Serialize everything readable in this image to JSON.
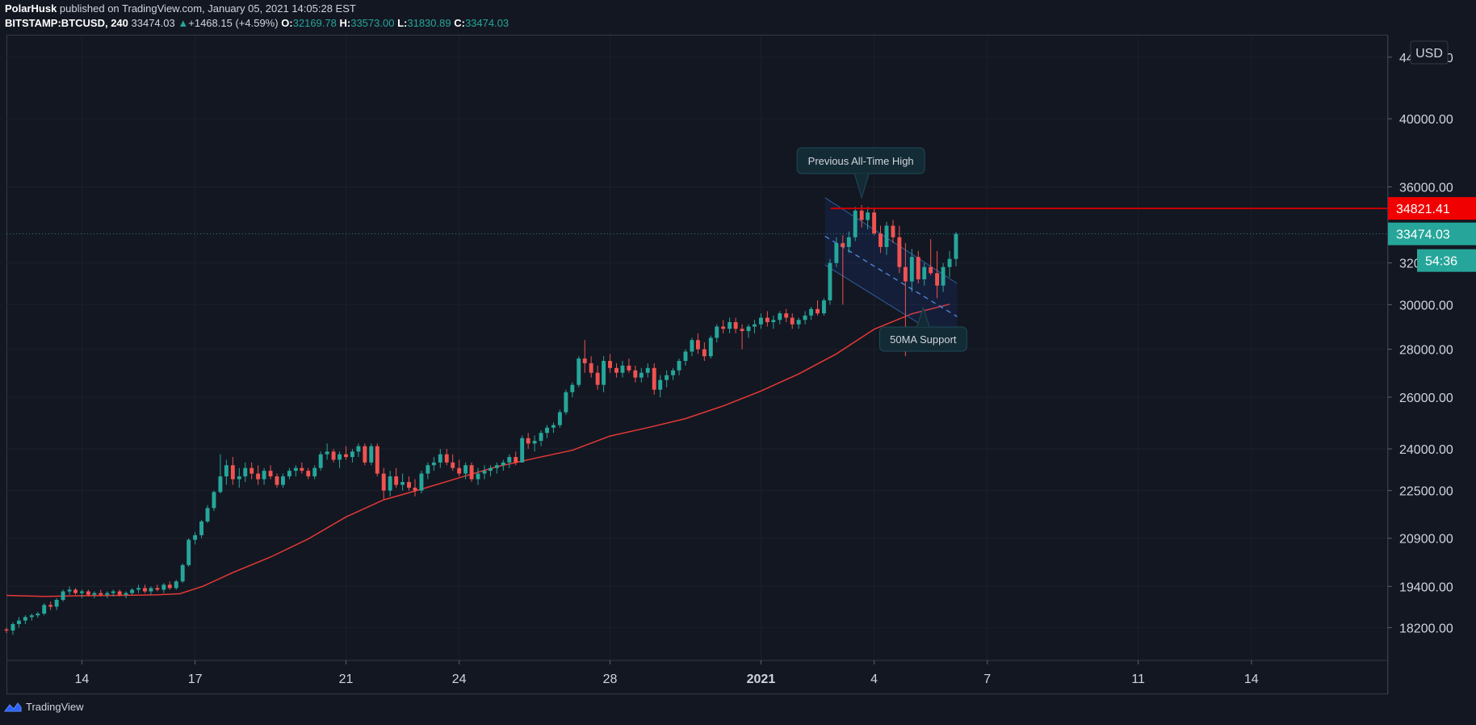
{
  "header": {
    "line1": {
      "user": "PolarHusk",
      "rest": " published on TradingView.com, January 05, 2021 14:05:28 EST"
    },
    "line2": {
      "symbol": "BITSTAMP:BTCUSD, 240",
      "last": "33474.03",
      "change": "+1468.15 (+4.59%)",
      "o_label": "O:",
      "o": "32169.78",
      "h_label": "H:",
      "h": "33573.00",
      "l_label": "L:",
      "l": "31830.89",
      "c_label": "C:",
      "c": "33474.03"
    }
  },
  "currency_label": "USD",
  "colors": {
    "bg": "#131722",
    "up": "#26a69a",
    "down": "#ef5350",
    "ma": "#e53935",
    "ath": "#cc0000",
    "grid": "#1c202b",
    "axis_text": "#d1d4dc"
  },
  "footer": {
    "brand": "TradingView",
    "icon": "tradingview-cloud-icon"
  },
  "badges": {
    "ath": "34821.41",
    "price": "33474.03",
    "countdown": "54:36"
  },
  "annotations": {
    "ath": "Previous All-Time High",
    "ma": "50MA Support"
  },
  "chart_data": {
    "type": "candlestick",
    "scale": "log",
    "y_ticks": [
      18200,
      19400,
      20900,
      22500,
      24000,
      26000,
      28000,
      30000,
      32000,
      36000,
      40000,
      44000
    ],
    "y_tick_labels": [
      "18200.00",
      "19400.00",
      "20900.00",
      "22500.00",
      "24000.00",
      "26000.00",
      "28000.00",
      "30000.00",
      "32000.00",
      "36000.00",
      "40000.00",
      "44000.00"
    ],
    "x_ticks": [
      {
        "day": 14,
        "label": "14"
      },
      {
        "day": 17,
        "label": "17"
      },
      {
        "day": 21,
        "label": "21"
      },
      {
        "day": 24,
        "label": "24"
      },
      {
        "day": 28,
        "label": "28"
      },
      {
        "day": 32,
        "label": "2021",
        "bold": true
      },
      {
        "day": 35,
        "label": "4"
      },
      {
        "day": 38,
        "label": "7"
      },
      {
        "day": 42,
        "label": "11"
      },
      {
        "day": 45,
        "label": "14"
      }
    ],
    "x_range_days": [
      12.0,
      48.6
    ],
    "y_range": [
      17300,
      45500
    ],
    "ath_level": 34821.41,
    "last_price": 33474.03,
    "ma50": [
      [
        12.0,
        19130
      ],
      [
        13.0,
        19100
      ],
      [
        14.0,
        19120
      ],
      [
        15.0,
        19130
      ],
      [
        16.0,
        19150
      ],
      [
        16.6,
        19180
      ],
      [
        17.2,
        19400
      ],
      [
        18.0,
        19820
      ],
      [
        19.0,
        20300
      ],
      [
        20.0,
        20880
      ],
      [
        21.0,
        21600
      ],
      [
        22.0,
        22180
      ],
      [
        23.0,
        22550
      ],
      [
        24.0,
        22950
      ],
      [
        25.0,
        23350
      ],
      [
        26.0,
        23650
      ],
      [
        27.0,
        23950
      ],
      [
        28.0,
        24480
      ],
      [
        29.0,
        24800
      ],
      [
        30.0,
        25150
      ],
      [
        31.0,
        25650
      ],
      [
        32.0,
        26250
      ],
      [
        33.0,
        26950
      ],
      [
        34.0,
        27800
      ],
      [
        35.0,
        28880
      ],
      [
        36.0,
        29580
      ],
      [
        37.0,
        30020
      ]
    ],
    "channel": {
      "start_day": 33.7,
      "end_day": 37.2,
      "upper": [
        35400,
        31000
      ],
      "middle": [
        33350,
        29450
      ],
      "lower": [
        31900,
        28100
      ]
    },
    "candles": [
      [
        12.0,
        18150,
        18200,
        18050,
        18120
      ],
      [
        12.17,
        18120,
        18350,
        18000,
        18300
      ],
      [
        12.33,
        18300,
        18500,
        18200,
        18400
      ],
      [
        12.5,
        18400,
        18550,
        18300,
        18500
      ],
      [
        12.67,
        18500,
        18600,
        18400,
        18550
      ],
      [
        12.83,
        18550,
        18650,
        18480,
        18600
      ],
      [
        13.0,
        18600,
        18900,
        18550,
        18850
      ],
      [
        13.17,
        18850,
        18950,
        18700,
        18800
      ],
      [
        13.33,
        18800,
        19050,
        18700,
        19000
      ],
      [
        13.5,
        19000,
        19300,
        18950,
        19250
      ],
      [
        13.67,
        19250,
        19400,
        19150,
        19300
      ],
      [
        13.83,
        19300,
        19350,
        19150,
        19200
      ],
      [
        14.0,
        19200,
        19300,
        19050,
        19250
      ],
      [
        14.17,
        19250,
        19300,
        19100,
        19150
      ],
      [
        14.33,
        19150,
        19250,
        19050,
        19200
      ],
      [
        14.5,
        19200,
        19300,
        19100,
        19150
      ],
      [
        14.67,
        19150,
        19250,
        19050,
        19200
      ],
      [
        14.83,
        19200,
        19300,
        19100,
        19250
      ],
      [
        15.0,
        19250,
        19300,
        19100,
        19150
      ],
      [
        15.17,
        19150,
        19250,
        19050,
        19200
      ],
      [
        15.33,
        19200,
        19350,
        19150,
        19300
      ],
      [
        15.5,
        19300,
        19450,
        19200,
        19350
      ],
      [
        15.67,
        19350,
        19450,
        19200,
        19250
      ],
      [
        15.83,
        19250,
        19400,
        19150,
        19350
      ],
      [
        16.0,
        19350,
        19450,
        19250,
        19300
      ],
      [
        16.17,
        19300,
        19500,
        19200,
        19450
      ],
      [
        16.33,
        19450,
        19550,
        19300,
        19350
      ],
      [
        16.5,
        19350,
        19600,
        19300,
        19550
      ],
      [
        16.67,
        19550,
        20100,
        19500,
        20050
      ],
      [
        16.83,
        20050,
        20900,
        20000,
        20850
      ],
      [
        17.0,
        20850,
        21100,
        20700,
        21000
      ],
      [
        17.17,
        21000,
        21500,
        20900,
        21450
      ],
      [
        17.33,
        21450,
        22000,
        21400,
        21900
      ],
      [
        17.5,
        21900,
        22500,
        21800,
        22450
      ],
      [
        17.67,
        22450,
        23800,
        22400,
        23000
      ],
      [
        17.83,
        23000,
        23600,
        22700,
        23400
      ],
      [
        18.0,
        23400,
        23700,
        22700,
        22900
      ],
      [
        18.17,
        22900,
        23300,
        22600,
        23000
      ],
      [
        18.33,
        23000,
        23500,
        22800,
        23300
      ],
      [
        18.5,
        23300,
        23500,
        22900,
        23100
      ],
      [
        18.67,
        23100,
        23400,
        22700,
        22900
      ],
      [
        18.83,
        22900,
        23300,
        22700,
        23200
      ],
      [
        19.0,
        23200,
        23400,
        22900,
        23000
      ],
      [
        19.17,
        23000,
        23100,
        22600,
        22700
      ],
      [
        19.33,
        22700,
        23100,
        22600,
        23000
      ],
      [
        19.5,
        23000,
        23300,
        22900,
        23200
      ],
      [
        19.67,
        23200,
        23400,
        23000,
        23300
      ],
      [
        19.83,
        23300,
        23500,
        23100,
        23200
      ],
      [
        20.0,
        23200,
        23300,
        22900,
        23000
      ],
      [
        20.17,
        23000,
        23400,
        22900,
        23300
      ],
      [
        20.33,
        23300,
        23900,
        23200,
        23800
      ],
      [
        20.5,
        23800,
        24200,
        23600,
        23900
      ],
      [
        20.67,
        23900,
        24000,
        23500,
        23600
      ],
      [
        20.83,
        23600,
        23900,
        23300,
        23800
      ],
      [
        21.0,
        23800,
        24100,
        23600,
        23700
      ],
      [
        21.17,
        23700,
        24000,
        23500,
        23900
      ],
      [
        21.33,
        23900,
        24200,
        23700,
        24100
      ],
      [
        21.5,
        24100,
        24200,
        23400,
        23500
      ],
      [
        21.67,
        23500,
        24200,
        23400,
        24100
      ],
      [
        21.83,
        24100,
        24200,
        23000,
        23100
      ],
      [
        22.0,
        23100,
        23300,
        22200,
        22500
      ],
      [
        22.17,
        22500,
        23200,
        22300,
        23000
      ],
      [
        22.33,
        23000,
        23300,
        22600,
        22700
      ],
      [
        22.5,
        22700,
        23100,
        22500,
        22800
      ],
      [
        22.67,
        22800,
        23000,
        22500,
        22600
      ],
      [
        22.83,
        22600,
        22900,
        22300,
        22500
      ],
      [
        23.0,
        22500,
        23200,
        22400,
        23100
      ],
      [
        23.17,
        23100,
        23500,
        22900,
        23400
      ],
      [
        23.33,
        23400,
        23700,
        23200,
        23500
      ],
      [
        23.5,
        23500,
        24000,
        23300,
        23800
      ],
      [
        23.67,
        23800,
        24000,
        23400,
        23500
      ],
      [
        23.83,
        23500,
        23800,
        23200,
        23300
      ],
      [
        24.0,
        23300,
        23600,
        23000,
        23100
      ],
      [
        24.17,
        23100,
        23500,
        22900,
        23400
      ],
      [
        24.33,
        23400,
        23500,
        22800,
        22900
      ],
      [
        24.5,
        22900,
        23300,
        22700,
        23100
      ],
      [
        24.67,
        23100,
        23400,
        22900,
        23200
      ],
      [
        24.83,
        23200,
        23400,
        23000,
        23300
      ],
      [
        25.0,
        23300,
        23500,
        23100,
        23400
      ],
      [
        25.17,
        23400,
        23600,
        23200,
        23500
      ],
      [
        25.33,
        23500,
        23800,
        23300,
        23700
      ],
      [
        25.5,
        23700,
        23900,
        23400,
        23500
      ],
      [
        25.67,
        23500,
        24500,
        23500,
        24400
      ],
      [
        25.83,
        24400,
        24600,
        24000,
        24200
      ],
      [
        26.0,
        24200,
        24500,
        23900,
        24300
      ],
      [
        26.17,
        24300,
        24700,
        24100,
        24600
      ],
      [
        26.33,
        24600,
        24900,
        24400,
        24800
      ],
      [
        26.5,
        24800,
        25000,
        24600,
        24900
      ],
      [
        26.67,
        24900,
        25500,
        24800,
        25400
      ],
      [
        26.83,
        25400,
        26300,
        25300,
        26200
      ],
      [
        27.0,
        26200,
        26600,
        26000,
        26500
      ],
      [
        27.17,
        26500,
        27700,
        26400,
        27600
      ],
      [
        27.33,
        27600,
        28400,
        27000,
        27400
      ],
      [
        27.5,
        27400,
        27700,
        26800,
        27000
      ],
      [
        27.67,
        27000,
        27300,
        26300,
        26500
      ],
      [
        27.83,
        26500,
        27700,
        26200,
        27500
      ],
      [
        28.0,
        27500,
        27800,
        27000,
        27200
      ],
      [
        28.17,
        27200,
        27400,
        26800,
        27000
      ],
      [
        28.33,
        27000,
        27500,
        26800,
        27300
      ],
      [
        28.5,
        27300,
        27600,
        27000,
        27100
      ],
      [
        28.67,
        27100,
        27300,
        26600,
        26800
      ],
      [
        28.83,
        26800,
        27200,
        26600,
        27000
      ],
      [
        29.0,
        27000,
        27400,
        26800,
        27200
      ],
      [
        29.17,
        27200,
        27400,
        26100,
        26300
      ],
      [
        29.33,
        26300,
        26900,
        26000,
        26700
      ],
      [
        29.5,
        26700,
        27100,
        26400,
        26900
      ],
      [
        29.67,
        26900,
        27200,
        26700,
        27100
      ],
      [
        29.83,
        27100,
        27600,
        26900,
        27500
      ],
      [
        30.0,
        27500,
        28000,
        27300,
        27900
      ],
      [
        30.17,
        27900,
        28500,
        27700,
        28400
      ],
      [
        30.33,
        28400,
        28700,
        27800,
        28000
      ],
      [
        30.5,
        28000,
        28300,
        27500,
        27700
      ],
      [
        30.67,
        27700,
        28600,
        27600,
        28500
      ],
      [
        30.83,
        28500,
        29100,
        28300,
        29000
      ],
      [
        31.0,
        29000,
        29300,
        28700,
        28900
      ],
      [
        31.17,
        28900,
        29400,
        28700,
        29200
      ],
      [
        31.33,
        29200,
        29400,
        28700,
        28900
      ],
      [
        31.5,
        28900,
        29100,
        28000,
        28800
      ],
      [
        31.67,
        28800,
        29100,
        28500,
        29000
      ],
      [
        31.83,
        29000,
        29300,
        28700,
        29100
      ],
      [
        32.0,
        29100,
        29600,
        28900,
        29400
      ],
      [
        32.17,
        29400,
        29700,
        29000,
        29200
      ],
      [
        32.33,
        29200,
        29500,
        28900,
        29300
      ],
      [
        32.5,
        29300,
        29700,
        29100,
        29600
      ],
      [
        32.67,
        29600,
        29800,
        29200,
        29400
      ],
      [
        32.83,
        29400,
        29600,
        28900,
        29100
      ],
      [
        33.0,
        29100,
        29400,
        28900,
        29300
      ],
      [
        33.17,
        29300,
        29700,
        29100,
        29500
      ],
      [
        33.33,
        29500,
        29900,
        29300,
        29800
      ],
      [
        33.5,
        29800,
        30200,
        29500,
        29600
      ],
      [
        33.67,
        29600,
        30300,
        29500,
        30200
      ],
      [
        33.83,
        30200,
        32200,
        30000,
        32000
      ],
      [
        34.0,
        32000,
        33300,
        31800,
        33000
      ],
      [
        34.17,
        33000,
        33400,
        30000,
        32800
      ],
      [
        34.33,
        32800,
        33600,
        32500,
        33300
      ],
      [
        34.5,
        33300,
        34900,
        33100,
        34700
      ],
      [
        34.67,
        34700,
        35000,
        33800,
        34200
      ],
      [
        34.83,
        34200,
        34900,
        33700,
        34600
      ],
      [
        35.0,
        34600,
        34800,
        33400,
        33500
      ],
      [
        35.17,
        33500,
        33900,
        32500,
        32800
      ],
      [
        35.33,
        32800,
        34100,
        32400,
        33900
      ],
      [
        35.5,
        33900,
        34200,
        33000,
        33300
      ],
      [
        35.67,
        33300,
        33900,
        31500,
        31800
      ],
      [
        35.83,
        31800,
        33000,
        27700,
        31100
      ],
      [
        36.0,
        31100,
        32700,
        30600,
        32300
      ],
      [
        36.17,
        32300,
        32600,
        31000,
        31200
      ],
      [
        36.33,
        31200,
        32000,
        30900,
        31800
      ],
      [
        36.5,
        31800,
        33200,
        31400,
        31500
      ],
      [
        36.67,
        31500,
        32600,
        30300,
        30900
      ],
      [
        36.83,
        30900,
        32000,
        30600,
        31800
      ],
      [
        37.0,
        31800,
        32600,
        31300,
        32200
      ],
      [
        37.17,
        32200,
        33573,
        31830,
        33474
      ]
    ]
  }
}
